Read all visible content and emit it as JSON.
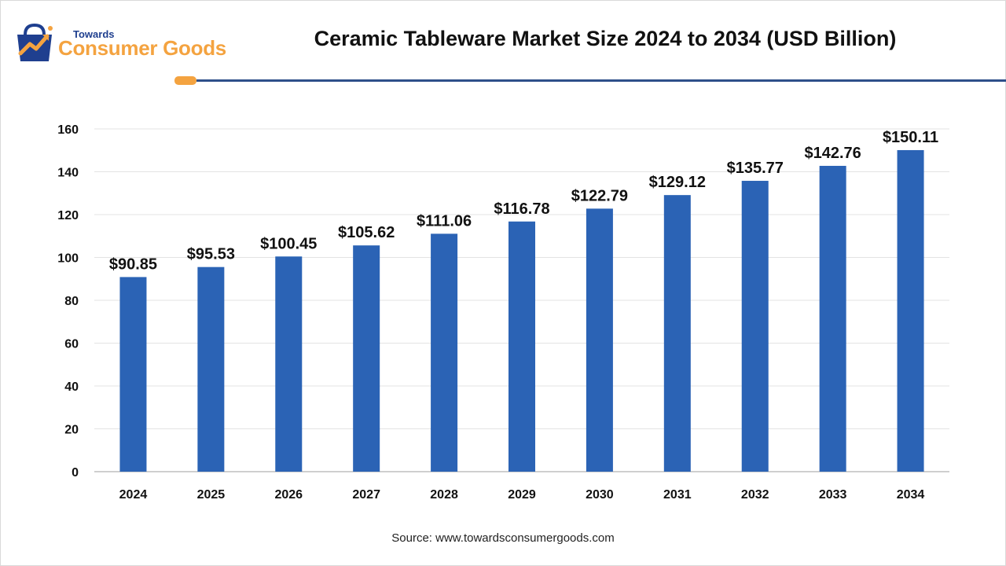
{
  "brand": {
    "top_word": "Towards",
    "name": "Consumer Goods",
    "colors": {
      "navy": "#1f3f8f",
      "orange": "#f4a340"
    }
  },
  "source_text": "Source: www.towardsconsumergoods.com",
  "chart_data": {
    "type": "bar",
    "title": "Ceramic Tableware Market Size 2024 to 2034 (USD Billion)",
    "xlabel": "",
    "ylabel": "",
    "categories": [
      "2024",
      "2025",
      "2026",
      "2027",
      "2028",
      "2029",
      "2030",
      "2031",
      "2032",
      "2033",
      "2034"
    ],
    "values": [
      90.85,
      95.53,
      100.45,
      105.62,
      111.06,
      116.78,
      122.79,
      129.12,
      135.77,
      142.76,
      150.11
    ],
    "data_labels": [
      "$90.85",
      "$95.53",
      "$100.45",
      "$105.62",
      "$111.06",
      "$116.78",
      "$122.79",
      "$129.12",
      "$135.77",
      "$142.76",
      "$150.11"
    ],
    "y_ticks": [
      0,
      20,
      40,
      60,
      80,
      100,
      120,
      140,
      160
    ],
    "ylim": [
      0,
      160
    ],
    "grid": true,
    "legend": "none",
    "bar_color": "#2b63b5",
    "grid_color": "#e3e3e3",
    "axis_color": "#bfbfbf"
  }
}
